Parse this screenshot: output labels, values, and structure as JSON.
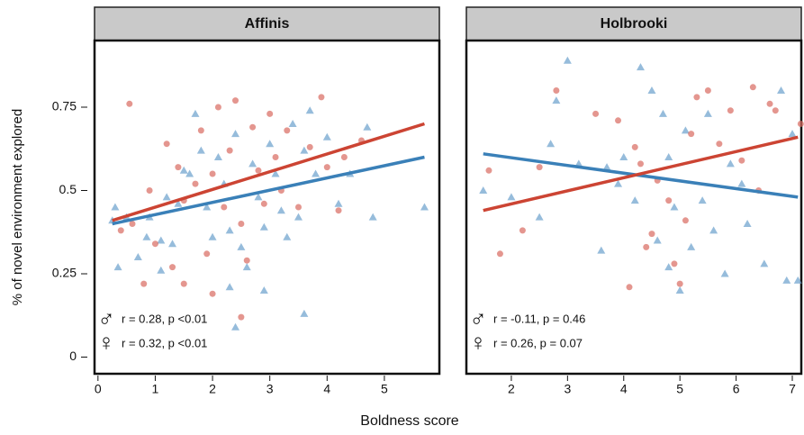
{
  "xlabel": "Boldness  score",
  "ylabel": "% of novel environment explored",
  "chart_data": [
    {
      "type": "scatter",
      "title": "Affinis",
      "xlim": [
        -0.06,
        5.96
      ],
      "ylim": [
        -0.05,
        0.95
      ],
      "xticks": [
        0,
        1,
        2,
        3,
        4,
        5
      ],
      "yticks": [
        0,
        0.25,
        0.5,
        0.75
      ],
      "series": [
        {
          "color": "#6a9fcc",
          "marker": "triangle",
          "fit_color": "#3a80b8",
          "x": [
            0.25,
            0.3,
            0.35,
            0.5,
            0.7,
            0.85,
            0.9,
            1.1,
            1.1,
            1.2,
            1.3,
            1.4,
            1.5,
            1.6,
            1.7,
            1.8,
            1.9,
            2.0,
            2.1,
            2.2,
            2.3,
            2.4,
            2.5,
            2.6,
            2.7,
            2.8,
            2.9,
            2.9,
            3.0,
            3.1,
            3.2,
            3.3,
            3.4,
            3.5,
            3.6,
            3.6,
            3.7,
            3.8,
            4.0,
            4.2,
            4.4,
            4.7,
            4.8,
            5.7,
            2.4,
            2.3
          ],
          "y": [
            0.41,
            0.45,
            0.27,
            0.42,
            0.3,
            0.36,
            0.42,
            0.35,
            0.26,
            0.48,
            0.34,
            0.46,
            0.56,
            0.55,
            0.73,
            0.62,
            0.45,
            0.36,
            0.6,
            0.52,
            0.38,
            0.67,
            0.33,
            0.27,
            0.58,
            0.48,
            0.39,
            0.2,
            0.64,
            0.55,
            0.44,
            0.36,
            0.7,
            0.42,
            0.62,
            0.13,
            0.74,
            0.55,
            0.66,
            0.46,
            0.55,
            0.69,
            0.42,
            0.45,
            0.09,
            0.21
          ],
          "fit_x": [
            0.25,
            5.7
          ],
          "fit_y": [
            0.4,
            0.6
          ]
        },
        {
          "color": "#d9695f",
          "marker": "circle",
          "fit_color": "#cc4433",
          "x": [
            0.55,
            0.4,
            0.6,
            0.8,
            0.9,
            1.0,
            1.2,
            1.3,
            1.4,
            1.5,
            1.5,
            1.7,
            1.8,
            1.9,
            2.0,
            2.1,
            2.2,
            2.3,
            2.4,
            2.5,
            2.6,
            2.7,
            2.8,
            2.9,
            3.0,
            3.1,
            3.2,
            3.3,
            3.5,
            3.7,
            3.9,
            4.0,
            4.3,
            4.6,
            4.2,
            2.5,
            2.0
          ],
          "y": [
            0.76,
            0.38,
            0.4,
            0.22,
            0.5,
            0.34,
            0.64,
            0.27,
            0.57,
            0.22,
            0.47,
            0.52,
            0.68,
            0.31,
            0.55,
            0.75,
            0.45,
            0.62,
            0.77,
            0.4,
            0.29,
            0.69,
            0.56,
            0.46,
            0.73,
            0.6,
            0.5,
            0.68,
            0.45,
            0.63,
            0.78,
            0.57,
            0.6,
            0.65,
            0.44,
            0.12,
            0.19
          ],
          "fit_x": [
            0.25,
            5.7
          ],
          "fit_y": [
            0.41,
            0.7
          ]
        }
      ],
      "annotations": [
        {
          "symbol": "♂",
          "text": "r = 0.28, p <0.01"
        },
        {
          "symbol": "♀",
          "text": "r = 0.32, p <0.01"
        }
      ]
    },
    {
      "type": "scatter",
      "title": "Holbrooki",
      "xlim": [
        1.2,
        7.16
      ],
      "ylim": [
        -0.05,
        0.95
      ],
      "xticks": [
        2,
        3,
        4,
        5,
        6,
        7
      ],
      "series": [
        {
          "color": "#6a9fcc",
          "marker": "triangle",
          "fit_color": "#3a80b8",
          "x": [
            1.5,
            2.0,
            2.5,
            2.7,
            2.8,
            3.0,
            3.2,
            3.6,
            3.7,
            3.9,
            4.0,
            4.2,
            4.3,
            4.5,
            4.6,
            4.7,
            4.8,
            4.8,
            4.9,
            5.0,
            5.1,
            5.2,
            5.4,
            5.5,
            5.6,
            5.8,
            5.9,
            6.1,
            6.2,
            6.5,
            6.8,
            6.9,
            7.0,
            7.1
          ],
          "y": [
            0.5,
            0.48,
            0.42,
            0.64,
            0.77,
            0.89,
            0.58,
            0.32,
            0.57,
            0.52,
            0.6,
            0.47,
            0.87,
            0.8,
            0.35,
            0.73,
            0.27,
            0.6,
            0.45,
            0.2,
            0.68,
            0.33,
            0.47,
            0.73,
            0.38,
            0.25,
            0.58,
            0.52,
            0.4,
            0.28,
            0.8,
            0.23,
            0.67,
            0.23
          ],
          "fit_x": [
            1.5,
            7.1
          ],
          "fit_y": [
            0.61,
            0.48
          ]
        },
        {
          "color": "#d9695f",
          "marker": "circle",
          "fit_color": "#cc4433",
          "x": [
            1.6,
            1.8,
            2.2,
            2.5,
            2.8,
            3.5,
            3.9,
            4.1,
            4.2,
            4.3,
            4.4,
            4.5,
            4.6,
            4.8,
            4.9,
            5.0,
            5.1,
            5.2,
            5.3,
            5.5,
            5.7,
            5.9,
            6.1,
            6.3,
            6.4,
            6.6,
            6.7,
            7.15
          ],
          "y": [
            0.56,
            0.31,
            0.38,
            0.57,
            0.8,
            0.73,
            0.71,
            0.21,
            0.63,
            0.58,
            0.33,
            0.37,
            0.53,
            0.47,
            0.28,
            0.22,
            0.41,
            0.67,
            0.78,
            0.8,
            0.64,
            0.74,
            0.59,
            0.81,
            0.5,
            0.76,
            0.74,
            0.7
          ],
          "fit_x": [
            1.5,
            7.1
          ],
          "fit_y": [
            0.44,
            0.66
          ]
        }
      ],
      "annotations": [
        {
          "symbol": "♂",
          "text": "r = -0.11, p = 0.46"
        },
        {
          "symbol": "♀",
          "text": "r = 0.26, p = 0.07"
        }
      ]
    }
  ]
}
